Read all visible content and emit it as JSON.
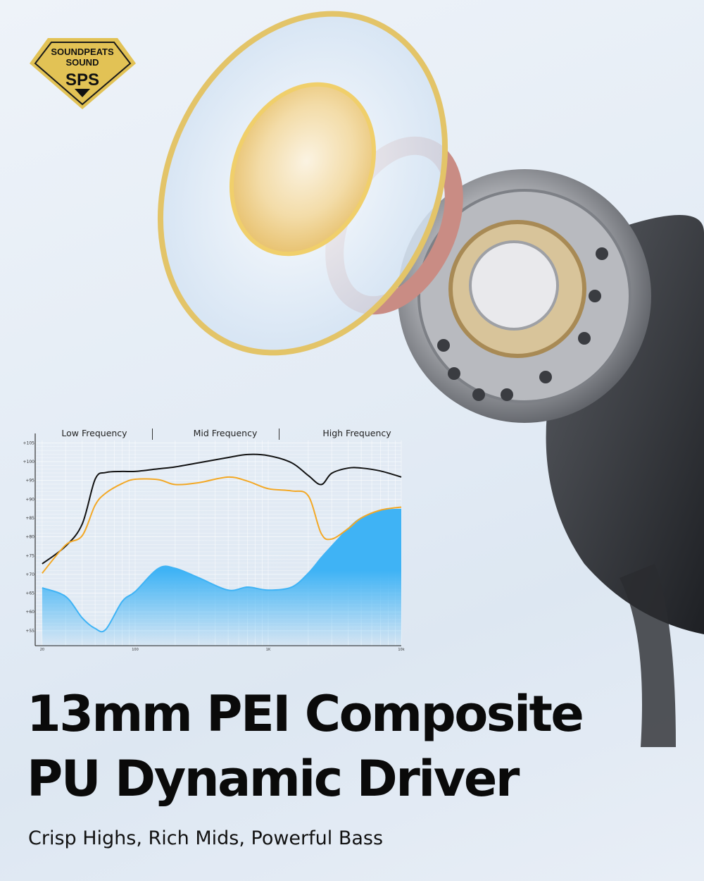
{
  "badge": {
    "line1": "SOUNDPEATS",
    "line2": "SOUND",
    "line3": "SPS",
    "color": "#e2c255"
  },
  "headline": {
    "line1": "13mm PEI Composite",
    "line2": "PU Dynamic Driver"
  },
  "subtitle": "Crisp Highs, Rich Mids, Powerful Bass",
  "chart_data": {
    "type": "line",
    "bands": [
      "Low Frequency",
      "Mid Frequency",
      "High Frequency"
    ],
    "x_scale": "log",
    "x_ticks": [
      {
        "value": 20,
        "label": "20"
      },
      {
        "value": 100,
        "label": "100"
      },
      {
        "value": 1000,
        "label": "1K"
      },
      {
        "value": 10000,
        "label": "10k"
      }
    ],
    "y_ticks": [
      "+105",
      "+100",
      "+95",
      "+90",
      "+85",
      "+80",
      "+75",
      "+70",
      "+65",
      "+60",
      "+55"
    ],
    "ylim": [
      51,
      106
    ],
    "grid": true,
    "x": [
      20,
      30,
      40,
      50,
      60,
      80,
      100,
      150,
      200,
      300,
      500,
      700,
      1000,
      1500,
      2000,
      2500,
      3000,
      4000,
      5000,
      7000,
      10000
    ],
    "series": [
      {
        "color": "#111111",
        "style": "line",
        "values": [
          72.8,
          77.5,
          83.4,
          95.3,
          97.1,
          97.4,
          97.4,
          98.1,
          98.6,
          99.7,
          101.1,
          101.9,
          101.6,
          99.7,
          96.3,
          93.9,
          96.9,
          98.3,
          98.3,
          97.5,
          95.9
        ]
      },
      {
        "color": "#f3a825",
        "style": "line",
        "values": [
          70.3,
          77.8,
          80.3,
          88.4,
          91.6,
          94.2,
          95.3,
          95.2,
          93.9,
          94.4,
          95.9,
          94.8,
          92.8,
          92.2,
          90.9,
          80.9,
          79.4,
          82.2,
          85.0,
          87.1,
          87.9
        ]
      },
      {
        "color": "#3fb3f5",
        "style": "area",
        "values": [
          66.4,
          64.1,
          58.4,
          55.6,
          55.3,
          62.8,
          65.4,
          71.6,
          71.6,
          69.1,
          65.8,
          66.6,
          65.8,
          66.6,
          70.3,
          74.4,
          77.5,
          82.2,
          85.0,
          86.9,
          87.3
        ]
      }
    ]
  }
}
